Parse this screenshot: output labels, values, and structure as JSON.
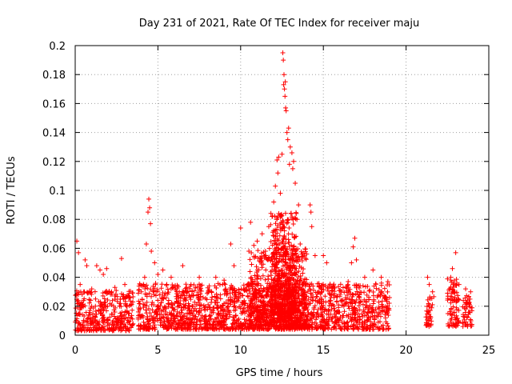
{
  "chart_data": {
    "type": "scatter",
    "title": "Day 231 of 2021, Rate Of TEC Index for receiver maju",
    "xlabel": "GPS time / hours",
    "ylabel": "ROTI / TECUs",
    "xlim": [
      0,
      25
    ],
    "ylim": [
      0,
      0.2
    ],
    "xticks": [
      0,
      5,
      10,
      15,
      20,
      25
    ],
    "xtick_labels": [
      "0",
      "5",
      "10",
      "15",
      "20",
      "25"
    ],
    "yticks": [
      0,
      0.02,
      0.04,
      0.06,
      0.08,
      0.1,
      0.12,
      0.14,
      0.16,
      0.18,
      0.2
    ],
    "ytick_labels": [
      "0",
      "0.02",
      "0.04",
      "0.06",
      "0.08",
      "0.1",
      "0.12",
      "0.14",
      "0.16",
      "0.18",
      "0.2"
    ],
    "grid": true,
    "marker": "+",
    "series": [
      {
        "name": "ROTI",
        "color": "#ff0000",
        "points": [
          [
            0.1,
            0.065
          ],
          [
            0.2,
            0.057
          ],
          [
            0.3,
            0.035
          ],
          [
            0.5,
            0.03
          ],
          [
            0.6,
            0.052
          ],
          [
            0.7,
            0.048
          ],
          [
            1.0,
            0.032
          ],
          [
            1.3,
            0.048
          ],
          [
            1.5,
            0.045
          ],
          [
            1.7,
            0.042
          ],
          [
            1.9,
            0.046
          ],
          [
            2.2,
            0.03
          ],
          [
            2.4,
            0.033
          ],
          [
            2.8,
            0.053
          ],
          [
            3.0,
            0.035
          ],
          [
            4.0,
            0.03
          ],
          [
            4.2,
            0.04
          ],
          [
            4.3,
            0.063
          ],
          [
            4.4,
            0.085
          ],
          [
            4.45,
            0.094
          ],
          [
            4.5,
            0.088
          ],
          [
            4.55,
            0.077
          ],
          [
            4.6,
            0.058
          ],
          [
            4.8,
            0.05
          ],
          [
            5.0,
            0.042
          ],
          [
            5.3,
            0.045
          ],
          [
            5.8,
            0.04
          ],
          [
            6.5,
            0.048
          ],
          [
            7.0,
            0.035
          ],
          [
            7.5,
            0.04
          ],
          [
            8.5,
            0.04
          ],
          [
            9.0,
            0.038
          ],
          [
            9.4,
            0.063
          ],
          [
            9.6,
            0.048
          ],
          [
            10.0,
            0.074
          ],
          [
            10.5,
            0.058
          ],
          [
            10.6,
            0.078
          ],
          [
            10.8,
            0.062
          ],
          [
            11.0,
            0.065
          ],
          [
            11.3,
            0.07
          ],
          [
            11.5,
            0.058
          ],
          [
            11.7,
            0.075
          ],
          [
            11.9,
            0.082
          ],
          [
            12.0,
            0.092
          ],
          [
            12.1,
            0.103
          ],
          [
            12.2,
            0.121
          ],
          [
            12.25,
            0.112
          ],
          [
            12.3,
            0.123
          ],
          [
            12.4,
            0.098
          ],
          [
            12.5,
            0.125
          ],
          [
            12.55,
            0.195
          ],
          [
            12.58,
            0.19
          ],
          [
            12.6,
            0.173
          ],
          [
            12.62,
            0.18
          ],
          [
            12.65,
            0.17
          ],
          [
            12.68,
            0.165
          ],
          [
            12.7,
            0.175
          ],
          [
            12.72,
            0.157
          ],
          [
            12.75,
            0.155
          ],
          [
            12.8,
            0.14
          ],
          [
            12.85,
            0.135
          ],
          [
            12.9,
            0.143
          ],
          [
            12.95,
            0.118
          ],
          [
            13.0,
            0.13
          ],
          [
            13.1,
            0.126
          ],
          [
            13.15,
            0.115
          ],
          [
            13.2,
            0.12
          ],
          [
            13.3,
            0.105
          ],
          [
            13.4,
            0.08
          ],
          [
            13.5,
            0.09
          ],
          [
            13.6,
            0.063
          ],
          [
            14.2,
            0.09
          ],
          [
            14.25,
            0.085
          ],
          [
            14.3,
            0.075
          ],
          [
            14.5,
            0.055
          ],
          [
            15.0,
            0.055
          ],
          [
            15.2,
            0.05
          ],
          [
            15.4,
            0.035
          ],
          [
            16.5,
            0.037
          ],
          [
            16.7,
            0.05
          ],
          [
            16.8,
            0.061
          ],
          [
            16.9,
            0.067
          ],
          [
            17.0,
            0.052
          ],
          [
            17.5,
            0.04
          ],
          [
            18.0,
            0.045
          ],
          [
            18.5,
            0.04
          ],
          [
            18.9,
            0.037
          ],
          [
            21.3,
            0.04
          ],
          [
            21.4,
            0.035
          ],
          [
            21.6,
            0.03
          ],
          [
            22.7,
            0.04
          ],
          [
            22.8,
            0.046
          ],
          [
            23.0,
            0.057
          ],
          [
            23.2,
            0.035
          ],
          [
            23.6,
            0.032
          ],
          [
            23.9,
            0.03
          ]
        ],
        "dense_segments": [
          {
            "x": [
              0,
              3.5
            ],
            "y": [
              0.003,
              0.031
            ]
          },
          {
            "x": [
              3.8,
              19.0
            ],
            "y": [
              0.004,
              0.036
            ]
          },
          {
            "x": [
              10.5,
              14.0
            ],
            "y": [
              0.006,
              0.06
            ]
          },
          {
            "x": [
              11.8,
              13.4
            ],
            "y": [
              0.015,
              0.085
            ]
          },
          {
            "x": [
              21.2,
              21.7
            ],
            "y": [
              0.006,
              0.028
            ]
          },
          {
            "x": [
              22.5,
              23.2
            ],
            "y": [
              0.006,
              0.04
            ]
          },
          {
            "x": [
              23.4,
              24.0
            ],
            "y": [
              0.006,
              0.03
            ]
          }
        ]
      }
    ]
  }
}
